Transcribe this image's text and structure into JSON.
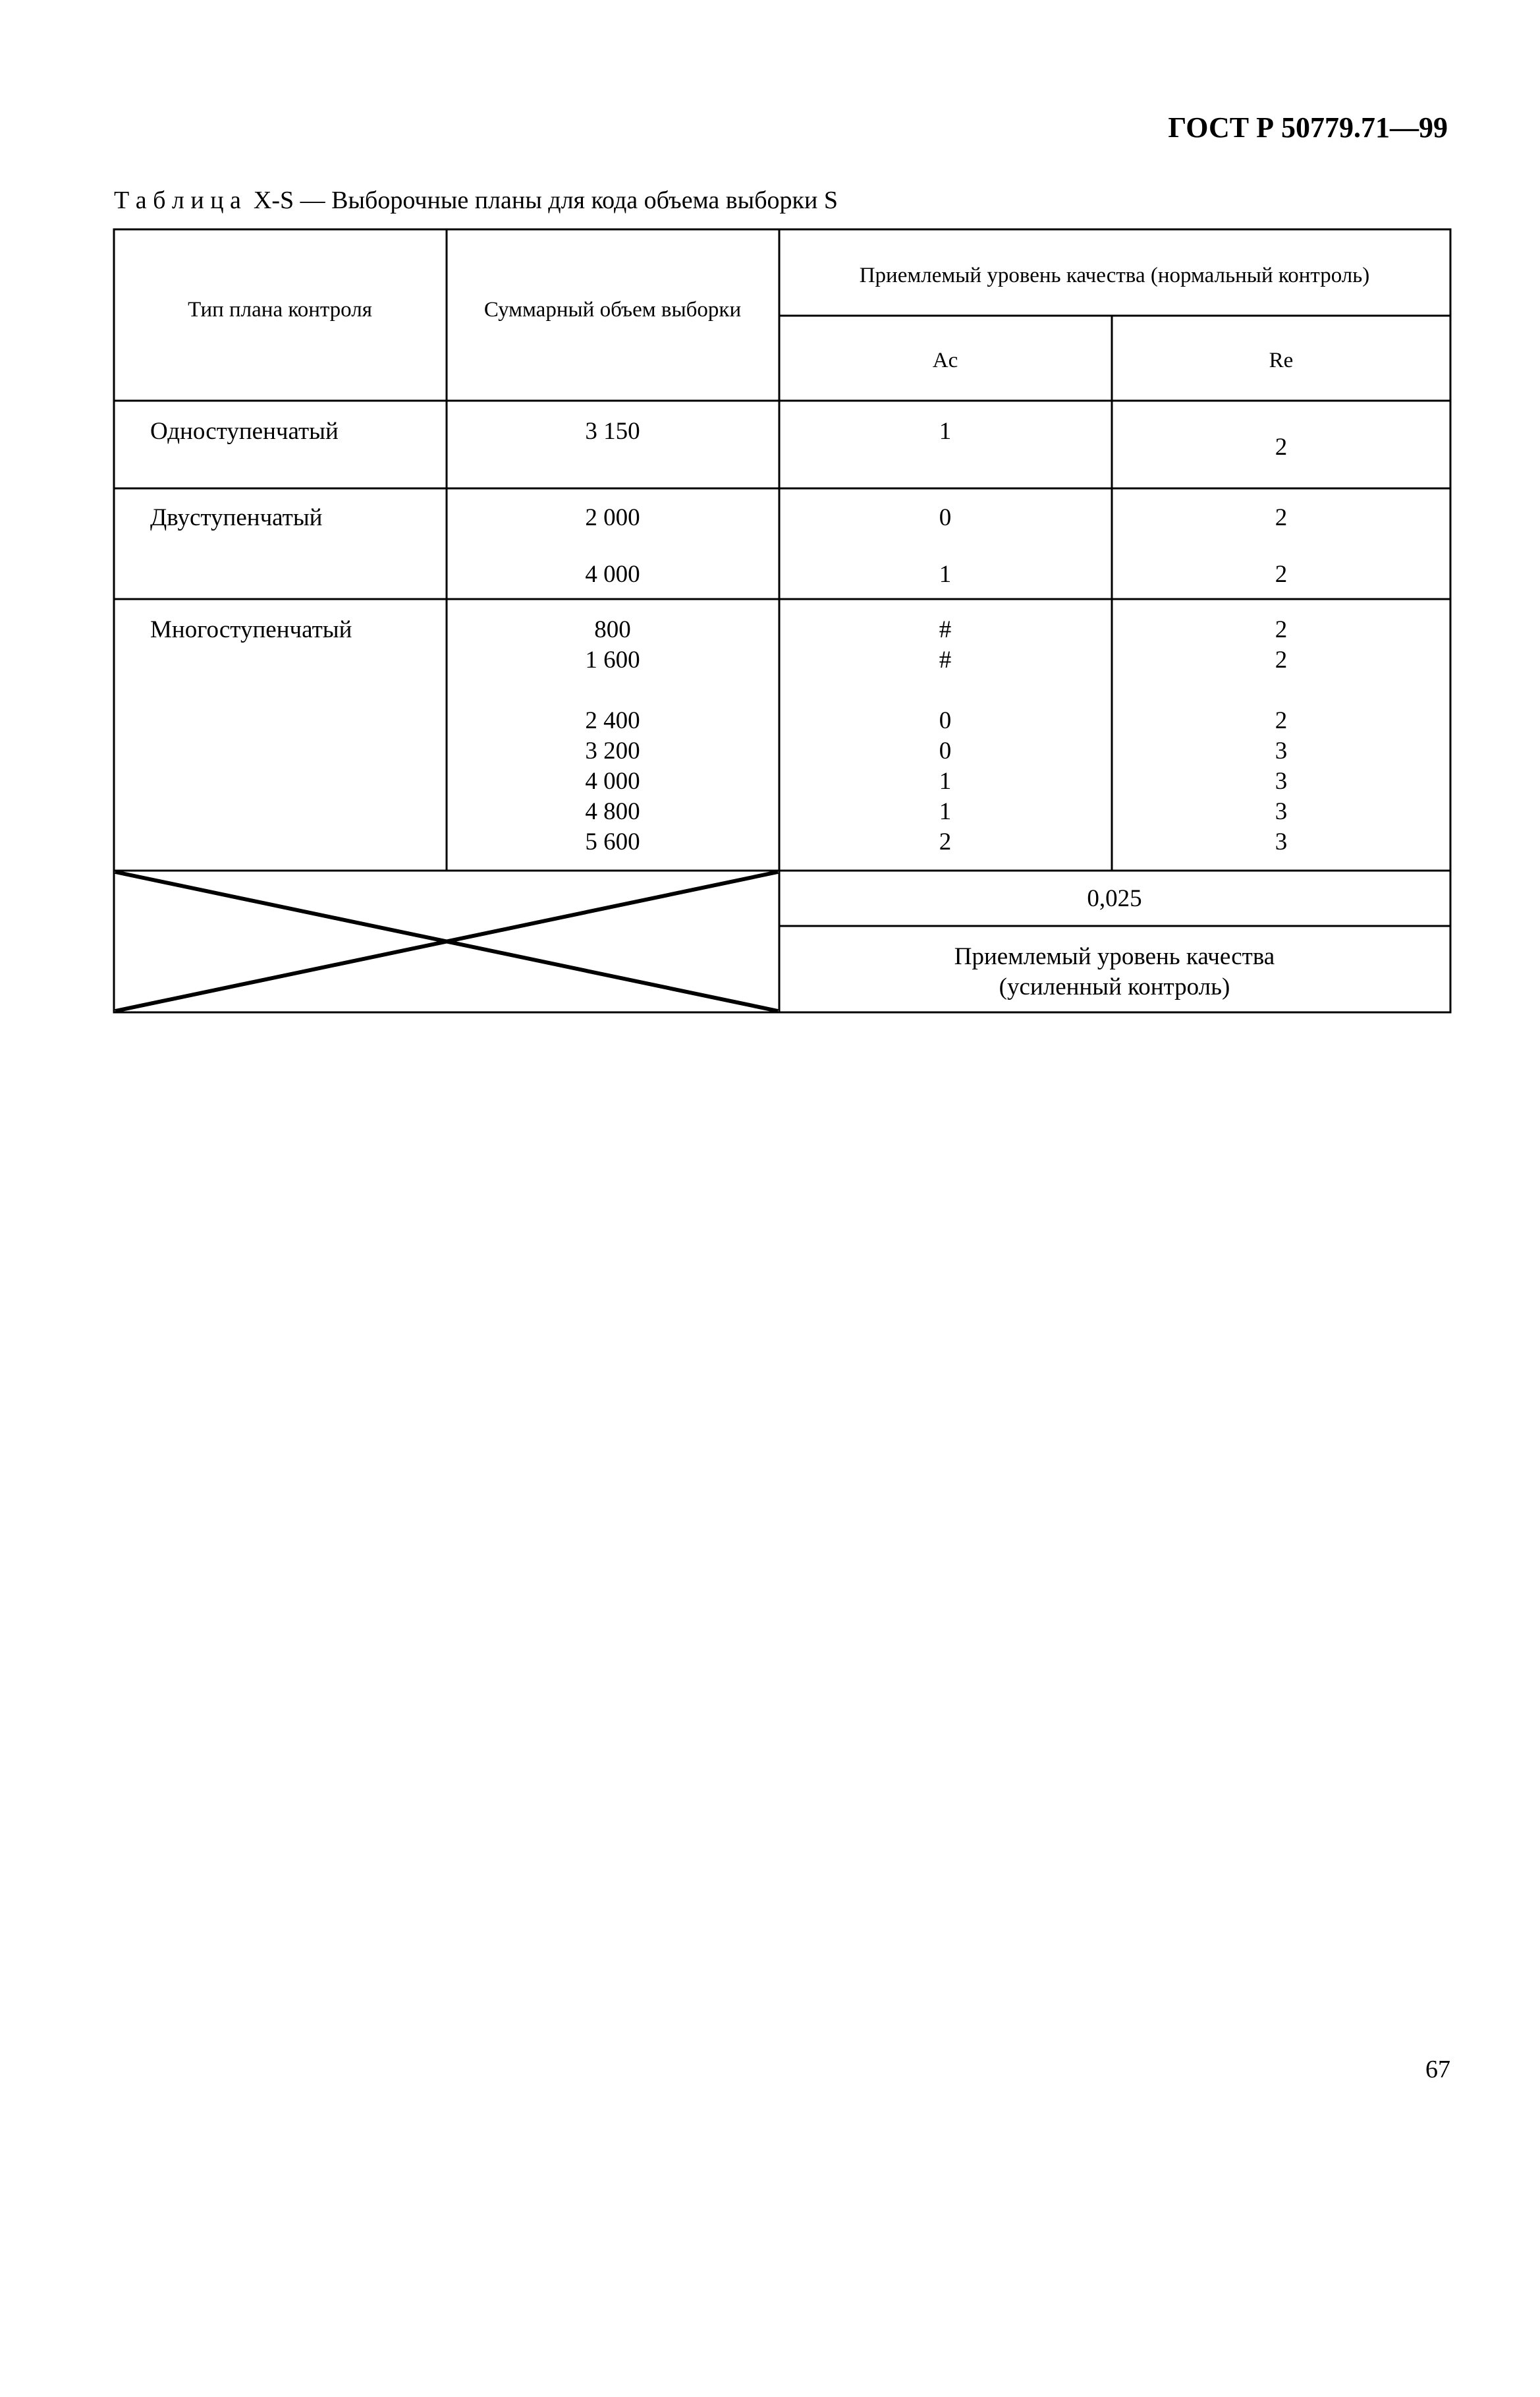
{
  "header": {
    "doc_number": "ГОСТ Р 50779.71—99"
  },
  "caption": {
    "label": "Т а б л и ц а",
    "text": "X-S — Выборочные планы для кода объема выборки S"
  },
  "table": {
    "headers": {
      "plan_type": "Тип плана контроля",
      "total_sample": "Суммарный объем выборки",
      "aql_normal": "Приемлемый уровень качества (нормальный контроль)",
      "ac": "Ac",
      "re": "Re"
    },
    "rows": [
      {
        "type": "Одноступенчатый",
        "samples": [
          "3 150"
        ],
        "ac": [
          "1"
        ],
        "re": [
          "2"
        ]
      },
      {
        "type": "Двуступенчатый",
        "samples": [
          "2 000",
          "4 000"
        ],
        "ac": [
          "0",
          "1"
        ],
        "re": [
          "2",
          "2"
        ]
      },
      {
        "type": "Многоступенчатый",
        "samples": [
          "800",
          "1 600",
          "2 400",
          "3 200",
          "4 000",
          "4 800",
          "5 600"
        ],
        "ac": [
          "#",
          "#",
          "0",
          "0",
          "1",
          "1",
          "2"
        ],
        "re": [
          "2",
          "2",
          "2",
          "3",
          "3",
          "3",
          "3"
        ]
      }
    ],
    "aql_value": "0,025",
    "aql_tightened_line1": "Приемлемый уровень качества",
    "aql_tightened_line2": "(усиленный контроль)"
  },
  "footer": {
    "page_number": "67"
  }
}
